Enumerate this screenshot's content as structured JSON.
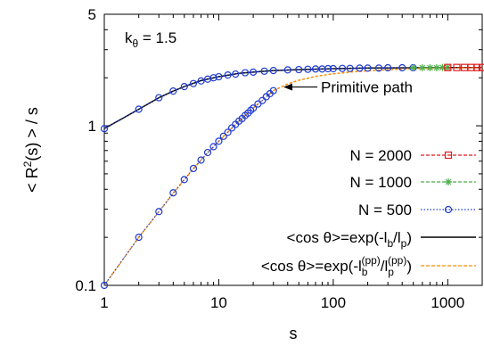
{
  "chart_data": {
    "type": "line",
    "xscale": "log",
    "yscale": "log",
    "xlim": [
      1,
      2000
    ],
    "ylim": [
      0.1,
      5
    ],
    "xticks": [
      {
        "value": 1,
        "label": "1"
      },
      {
        "value": 10,
        "label": "10"
      },
      {
        "value": 100,
        "label": "100"
      },
      {
        "value": 1000,
        "label": "1000"
      }
    ],
    "yticks": [
      {
        "value": 0.1,
        "label": "0.1"
      },
      {
        "value": 1,
        "label": "1"
      },
      {
        "value": 5,
        "label": "5"
      }
    ],
    "xlabel": "s",
    "ylabel": "< R",
    "ylabel_sup": "2",
    "ylabel_rest": "(s) > / s",
    "annotation_param": "k",
    "annotation_param_sub": "θ",
    "annotation_param_value": " = 1.5",
    "annotation_arrow": {
      "text": "Primitive path",
      "x": 33,
      "y": 1.75
    },
    "legend": {
      "position": "bottom-right",
      "entries": [
        {
          "label": "N = 2000",
          "color": "#e41a1c",
          "style": "dashed",
          "marker": "square"
        },
        {
          "label": "N = 1000",
          "color": "#4daf4a",
          "style": "dashed",
          "marker": "star"
        },
        {
          "label": "N =   500",
          "color": "#1f3bd1",
          "style": "dotted",
          "marker": "circle"
        },
        {
          "label": "<cos θ>=exp(-l",
          "sub1": "b",
          "mid": "/l",
          "sub2": "p",
          "end": ")",
          "color": "#000000",
          "style": "solid"
        },
        {
          "label": "<cos θ>=exp(-l",
          "sup1": "(pp)",
          "sub1": "b",
          "mid": "/l",
          "sup2": "(pp)",
          "sub2": "p",
          "end": ")",
          "color": "#ff8c00",
          "style": "dashed"
        }
      ]
    },
    "series": [
      {
        "name": "N = 500",
        "group": "upper",
        "color": "#1f3bd1",
        "marker": "circle",
        "x": [
          1,
          2,
          3,
          4,
          5,
          6,
          7,
          8,
          9,
          10,
          12,
          14,
          17,
          20,
          25,
          30,
          40,
          50,
          60,
          70,
          80,
          90,
          100,
          120,
          140,
          170,
          200,
          250,
          300,
          400,
          499
        ],
        "y": [
          0.96,
          1.27,
          1.5,
          1.65,
          1.76,
          1.84,
          1.91,
          1.96,
          2.0,
          2.03,
          2.08,
          2.11,
          2.15,
          2.17,
          2.2,
          2.22,
          2.24,
          2.25,
          2.26,
          2.27,
          2.27,
          2.28,
          2.28,
          2.29,
          2.29,
          2.3,
          2.3,
          2.3,
          2.31,
          2.31,
          2.31
        ]
      },
      {
        "name": "N = 500 (primitive path)",
        "group": "lower",
        "color": "#1f3bd1",
        "marker": "circle",
        "x": [
          1,
          2,
          3,
          4,
          5,
          6,
          7,
          8,
          9,
          10,
          11,
          12,
          13,
          14,
          15,
          16,
          17,
          18,
          19,
          20,
          22,
          24,
          26,
          28,
          30
        ],
        "y": [
          0.1,
          0.2,
          0.29,
          0.38,
          0.46,
          0.54,
          0.61,
          0.68,
          0.74,
          0.8,
          0.86,
          0.91,
          0.97,
          1.02,
          1.07,
          1.11,
          1.16,
          1.2,
          1.25,
          1.29,
          1.37,
          1.44,
          1.52,
          1.59,
          1.66
        ]
      },
      {
        "name": "N = 1000",
        "group": "upper",
        "color": "#4daf4a",
        "marker": "star",
        "x": [
          500,
          600,
          700,
          800,
          900,
          999
        ],
        "y": [
          2.31,
          2.31,
          2.31,
          2.31,
          2.32,
          2.32
        ]
      },
      {
        "name": "N = 2000",
        "group": "upper",
        "color": "#e41a1c",
        "marker": "square",
        "x": [
          1000,
          1200,
          1400,
          1600,
          1800,
          1999
        ],
        "y": [
          2.32,
          2.32,
          2.32,
          2.32,
          2.32,
          2.32
        ]
      },
      {
        "name": "<cos θ>=exp(-l_b/l_p)",
        "color": "#000000",
        "x": [
          1,
          1.5,
          2,
          3,
          4,
          5,
          7,
          10,
          15,
          20,
          30,
          50,
          100,
          200,
          500,
          1000,
          2000
        ],
        "y": [
          0.96,
          1.13,
          1.27,
          1.5,
          1.65,
          1.76,
          1.92,
          2.03,
          2.13,
          2.17,
          2.22,
          2.25,
          2.28,
          2.3,
          2.31,
          2.32,
          2.32
        ]
      },
      {
        "name": "<cos θ>=exp(-l_b^(pp)/l_p^(pp))",
        "color": "#ff8c00",
        "x": [
          1,
          2,
          3,
          5,
          7,
          10,
          15,
          20,
          30,
          40,
          50,
          70,
          100,
          150,
          200,
          300,
          500,
          700,
          1000,
          1500,
          2000
        ],
        "y": [
          0.1,
          0.2,
          0.29,
          0.46,
          0.61,
          0.8,
          1.07,
          1.29,
          1.66,
          1.83,
          1.93,
          2.04,
          2.12,
          2.18,
          2.21,
          2.25,
          2.28,
          2.29,
          2.3,
          2.31,
          2.31
        ]
      }
    ]
  }
}
